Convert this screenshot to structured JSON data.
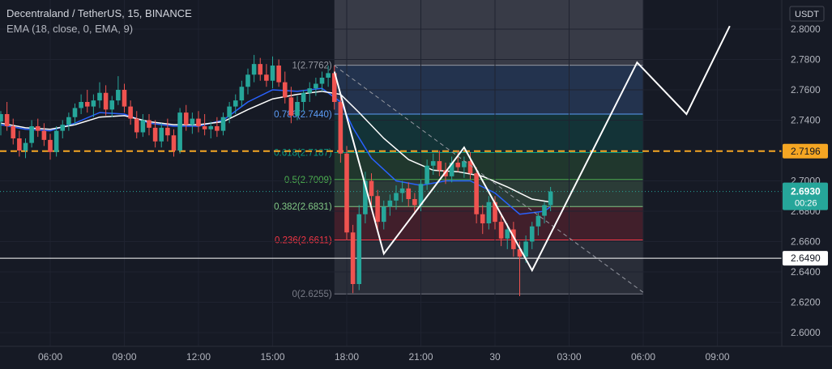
{
  "header": {
    "title": "Decentraland / TetherUS, 15, BINANCE",
    "indicator": "EMA (18, close, 0, EMA, 9)"
  },
  "colors": {
    "background": "#161a25",
    "up": "#26a69a",
    "down": "#ef5350",
    "ema": "#2962ff",
    "price_line": "#f5a623",
    "current_price": "#26a69a"
  },
  "chart_data": {
    "type": "candlestick",
    "currency_label": "USDT",
    "y_ticks": [
      "2.8000",
      "2.7800",
      "2.7600",
      "2.7400",
      "2.7200",
      "2.7000",
      "2.6800",
      "2.6600",
      "2.6400",
      "2.6200",
      "2.6000"
    ],
    "x_ticks": [
      "06:00",
      "09:00",
      "12:00",
      "15:00",
      "18:00",
      "21:00",
      "30",
      "03:00",
      "06:00",
      "09:00"
    ],
    "ylim": [
      2.595,
      2.8
    ],
    "price_tags": [
      {
        "label": "2.7196",
        "value": 2.7196,
        "kind": "orange"
      },
      {
        "label": "2.6930",
        "sub": "00:26",
        "value": 2.693,
        "kind": "current"
      },
      {
        "label": "2.6490",
        "value": 2.649,
        "kind": "white"
      }
    ],
    "fib_levels": [
      {
        "ratio": "1",
        "label": "(2.7762)",
        "value": 2.7762,
        "color": "#9598a1"
      },
      {
        "ratio": "0.786",
        "label": "(2.7440)",
        "value": 2.744,
        "color": "#5b9cf6"
      },
      {
        "ratio": "0.618",
        "label": "(2.7187)",
        "value": 2.7187,
        "color": "#089981"
      },
      {
        "ratio": "0.5",
        "label": "(2.7009)",
        "value": 2.7009,
        "color": "#4caf50"
      },
      {
        "ratio": "0.382",
        "label": "(2.6831)",
        "value": 2.6831,
        "color": "#81c784"
      },
      {
        "ratio": "0.236",
        "label": "(2.6611)",
        "value": 2.6611,
        "color": "#f23645"
      },
      {
        "ratio": "0",
        "label": "(2.6255)",
        "value": 2.6255,
        "color": "#787b86"
      }
    ],
    "fib_start_hours": 17.5,
    "fib_end_hours": 30,
    "candles": [
      {
        "t": 4.0,
        "o": 2.739,
        "h": 2.746,
        "l": 2.73,
        "c": 2.744
      },
      {
        "t": 4.25,
        "o": 2.744,
        "h": 2.752,
        "l": 2.733,
        "c": 2.736
      },
      {
        "t": 4.5,
        "o": 2.736,
        "h": 2.741,
        "l": 2.724,
        "c": 2.728
      },
      {
        "t": 4.75,
        "o": 2.728,
        "h": 2.733,
        "l": 2.716,
        "c": 2.72
      },
      {
        "t": 5.0,
        "o": 2.72,
        "h": 2.728,
        "l": 2.715,
        "c": 2.725
      },
      {
        "t": 5.25,
        "o": 2.725,
        "h": 2.74,
        "l": 2.722,
        "c": 2.736
      },
      {
        "t": 5.5,
        "o": 2.736,
        "h": 2.741,
        "l": 2.729,
        "c": 2.733
      },
      {
        "t": 5.75,
        "o": 2.733,
        "h": 2.738,
        "l": 2.723,
        "c": 2.727
      },
      {
        "t": 6.0,
        "o": 2.727,
        "h": 2.731,
        "l": 2.714,
        "c": 2.719
      },
      {
        "t": 6.25,
        "o": 2.719,
        "h": 2.736,
        "l": 2.716,
        "c": 2.733
      },
      {
        "t": 6.5,
        "o": 2.733,
        "h": 2.74,
        "l": 2.728,
        "c": 2.737
      },
      {
        "t": 6.75,
        "o": 2.737,
        "h": 2.745,
        "l": 2.733,
        "c": 2.742
      },
      {
        "t": 7.0,
        "o": 2.742,
        "h": 2.751,
        "l": 2.737,
        "c": 2.748
      },
      {
        "t": 7.25,
        "o": 2.748,
        "h": 2.757,
        "l": 2.744,
        "c": 2.752
      },
      {
        "t": 7.5,
        "o": 2.752,
        "h": 2.76,
        "l": 2.745,
        "c": 2.749
      },
      {
        "t": 7.75,
        "o": 2.749,
        "h": 2.757,
        "l": 2.742,
        "c": 2.753
      },
      {
        "t": 8.0,
        "o": 2.753,
        "h": 2.765,
        "l": 2.748,
        "c": 2.758
      },
      {
        "t": 8.25,
        "o": 2.758,
        "h": 2.763,
        "l": 2.743,
        "c": 2.747
      },
      {
        "t": 8.5,
        "o": 2.747,
        "h": 2.756,
        "l": 2.742,
        "c": 2.753
      },
      {
        "t": 8.75,
        "o": 2.753,
        "h": 2.769,
        "l": 2.75,
        "c": 2.76
      },
      {
        "t": 9.0,
        "o": 2.76,
        "h": 2.764,
        "l": 2.745,
        "c": 2.749
      },
      {
        "t": 9.25,
        "o": 2.749,
        "h": 2.753,
        "l": 2.737,
        "c": 2.741
      },
      {
        "t": 9.5,
        "o": 2.741,
        "h": 2.746,
        "l": 2.728,
        "c": 2.732
      },
      {
        "t": 9.75,
        "o": 2.732,
        "h": 2.744,
        "l": 2.729,
        "c": 2.74
      },
      {
        "t": 10.0,
        "o": 2.74,
        "h": 2.744,
        "l": 2.73,
        "c": 2.735
      },
      {
        "t": 10.25,
        "o": 2.735,
        "h": 2.74,
        "l": 2.722,
        "c": 2.726
      },
      {
        "t": 10.5,
        "o": 2.726,
        "h": 2.738,
        "l": 2.722,
        "c": 2.735
      },
      {
        "t": 10.75,
        "o": 2.735,
        "h": 2.741,
        "l": 2.726,
        "c": 2.73
      },
      {
        "t": 11.0,
        "o": 2.73,
        "h": 2.734,
        "l": 2.716,
        "c": 2.72
      },
      {
        "t": 11.25,
        "o": 2.72,
        "h": 2.748,
        "l": 2.718,
        "c": 2.745
      },
      {
        "t": 11.5,
        "o": 2.745,
        "h": 2.75,
        "l": 2.733,
        "c": 2.737
      },
      {
        "t": 11.75,
        "o": 2.737,
        "h": 2.745,
        "l": 2.731,
        "c": 2.741
      },
      {
        "t": 12.0,
        "o": 2.741,
        "h": 2.746,
        "l": 2.732,
        "c": 2.736
      },
      {
        "t": 12.25,
        "o": 2.736,
        "h": 2.744,
        "l": 2.73,
        "c": 2.734
      },
      {
        "t": 12.5,
        "o": 2.734,
        "h": 2.739,
        "l": 2.728,
        "c": 2.736
      },
      {
        "t": 12.75,
        "o": 2.736,
        "h": 2.742,
        "l": 2.729,
        "c": 2.733
      },
      {
        "t": 13.0,
        "o": 2.733,
        "h": 2.745,
        "l": 2.73,
        "c": 2.742
      },
      {
        "t": 13.25,
        "o": 2.742,
        "h": 2.752,
        "l": 2.738,
        "c": 2.749
      },
      {
        "t": 13.5,
        "o": 2.749,
        "h": 2.757,
        "l": 2.744,
        "c": 2.753
      },
      {
        "t": 13.75,
        "o": 2.753,
        "h": 2.766,
        "l": 2.749,
        "c": 2.762
      },
      {
        "t": 14.0,
        "o": 2.762,
        "h": 2.774,
        "l": 2.757,
        "c": 2.77
      },
      {
        "t": 14.25,
        "o": 2.77,
        "h": 2.783,
        "l": 2.765,
        "c": 2.777
      },
      {
        "t": 14.5,
        "o": 2.777,
        "h": 2.781,
        "l": 2.766,
        "c": 2.77
      },
      {
        "t": 14.75,
        "o": 2.77,
        "h": 2.777,
        "l": 2.762,
        "c": 2.766
      },
      {
        "t": 15.0,
        "o": 2.766,
        "h": 2.782,
        "l": 2.761,
        "c": 2.776
      },
      {
        "t": 15.25,
        "o": 2.776,
        "h": 2.78,
        "l": 2.762,
        "c": 2.765
      },
      {
        "t": 15.5,
        "o": 2.765,
        "h": 2.772,
        "l": 2.751,
        "c": 2.755
      },
      {
        "t": 15.75,
        "o": 2.755,
        "h": 2.762,
        "l": 2.738,
        "c": 2.743
      },
      {
        "t": 16.0,
        "o": 2.743,
        "h": 2.756,
        "l": 2.74,
        "c": 2.752
      },
      {
        "t": 16.25,
        "o": 2.752,
        "h": 2.76,
        "l": 2.746,
        "c": 2.758
      },
      {
        "t": 16.5,
        "o": 2.758,
        "h": 2.765,
        "l": 2.752,
        "c": 2.761
      },
      {
        "t": 16.75,
        "o": 2.761,
        "h": 2.768,
        "l": 2.756,
        "c": 2.764
      },
      {
        "t": 17.0,
        "o": 2.764,
        "h": 2.772,
        "l": 2.759,
        "c": 2.768
      },
      {
        "t": 17.25,
        "o": 2.768,
        "h": 2.776,
        "l": 2.762,
        "c": 2.771
      },
      {
        "t": 17.5,
        "o": 2.771,
        "h": 2.776,
        "l": 2.747,
        "c": 2.752
      },
      {
        "t": 17.75,
        "o": 2.752,
        "h": 2.755,
        "l": 2.712,
        "c": 2.718
      },
      {
        "t": 18.0,
        "o": 2.718,
        "h": 2.723,
        "l": 2.661,
        "c": 2.666
      },
      {
        "t": 18.25,
        "o": 2.666,
        "h": 2.671,
        "l": 2.626,
        "c": 2.632
      },
      {
        "t": 18.5,
        "o": 2.632,
        "h": 2.684,
        "l": 2.628,
        "c": 2.678
      },
      {
        "t": 18.75,
        "o": 2.678,
        "h": 2.706,
        "l": 2.672,
        "c": 2.7
      },
      {
        "t": 19.0,
        "o": 2.7,
        "h": 2.705,
        "l": 2.684,
        "c": 2.69
      },
      {
        "t": 19.25,
        "o": 2.69,
        "h": 2.694,
        "l": 2.667,
        "c": 2.673
      },
      {
        "t": 19.5,
        "o": 2.673,
        "h": 2.687,
        "l": 2.668,
        "c": 2.683
      },
      {
        "t": 19.75,
        "o": 2.683,
        "h": 2.691,
        "l": 2.677,
        "c": 2.687
      },
      {
        "t": 20.0,
        "o": 2.687,
        "h": 2.697,
        "l": 2.681,
        "c": 2.692
      },
      {
        "t": 20.25,
        "o": 2.692,
        "h": 2.7,
        "l": 2.686,
        "c": 2.695
      },
      {
        "t": 20.5,
        "o": 2.695,
        "h": 2.699,
        "l": 2.683,
        "c": 2.688
      },
      {
        "t": 20.75,
        "o": 2.688,
        "h": 2.692,
        "l": 2.678,
        "c": 2.684
      },
      {
        "t": 21.0,
        "o": 2.684,
        "h": 2.701,
        "l": 2.68,
        "c": 2.698
      },
      {
        "t": 21.25,
        "o": 2.698,
        "h": 2.714,
        "l": 2.694,
        "c": 2.71
      },
      {
        "t": 21.5,
        "o": 2.71,
        "h": 2.718,
        "l": 2.704,
        "c": 2.713
      },
      {
        "t": 21.75,
        "o": 2.713,
        "h": 2.72,
        "l": 2.703,
        "c": 2.707
      },
      {
        "t": 22.0,
        "o": 2.707,
        "h": 2.712,
        "l": 2.698,
        "c": 2.703
      },
      {
        "t": 22.25,
        "o": 2.703,
        "h": 2.716,
        "l": 2.699,
        "c": 2.712
      },
      {
        "t": 22.5,
        "o": 2.712,
        "h": 2.72,
        "l": 2.706,
        "c": 2.709
      },
      {
        "t": 22.75,
        "o": 2.709,
        "h": 2.716,
        "l": 2.702,
        "c": 2.713
      },
      {
        "t": 23.0,
        "o": 2.713,
        "h": 2.719,
        "l": 2.701,
        "c": 2.705
      },
      {
        "t": 23.25,
        "o": 2.705,
        "h": 2.709,
        "l": 2.672,
        "c": 2.678
      },
      {
        "t": 23.5,
        "o": 2.678,
        "h": 2.684,
        "l": 2.665,
        "c": 2.672
      },
      {
        "t": 23.75,
        "o": 2.672,
        "h": 2.69,
        "l": 2.668,
        "c": 2.686
      },
      {
        "t": 24.0,
        "o": 2.686,
        "h": 2.69,
        "l": 2.668,
        "c": 2.673
      },
      {
        "t": 24.25,
        "o": 2.673,
        "h": 2.677,
        "l": 2.657,
        "c": 2.662
      },
      {
        "t": 24.5,
        "o": 2.662,
        "h": 2.672,
        "l": 2.655,
        "c": 2.668
      },
      {
        "t": 24.75,
        "o": 2.668,
        "h": 2.673,
        "l": 2.65,
        "c": 2.655
      },
      {
        "t": 25.0,
        "o": 2.655,
        "h": 2.66,
        "l": 2.624,
        "c": 2.65
      },
      {
        "t": 25.25,
        "o": 2.65,
        "h": 2.664,
        "l": 2.646,
        "c": 2.66
      },
      {
        "t": 25.5,
        "o": 2.66,
        "h": 2.673,
        "l": 2.655,
        "c": 2.67
      },
      {
        "t": 25.75,
        "o": 2.67,
        "h": 2.679,
        "l": 2.664,
        "c": 2.677
      },
      {
        "t": 26.0,
        "o": 2.677,
        "h": 2.686,
        "l": 2.672,
        "c": 2.684
      },
      {
        "t": 26.25,
        "o": 2.684,
        "h": 2.696,
        "l": 2.68,
        "c": 2.693
      }
    ],
    "ema_fast": [
      [
        4,
        2.737
      ],
      [
        5,
        2.734
      ],
      [
        6,
        2.733
      ],
      [
        7,
        2.738
      ],
      [
        8,
        2.745
      ],
      [
        9,
        2.744
      ],
      [
        10,
        2.738
      ],
      [
        11,
        2.736
      ],
      [
        12,
        2.736
      ],
      [
        13,
        2.74
      ],
      [
        14,
        2.752
      ],
      [
        15,
        2.76
      ],
      [
        16,
        2.759
      ],
      [
        17,
        2.761
      ],
      [
        17.75,
        2.752
      ],
      [
        18.25,
        2.735
      ],
      [
        19,
        2.715
      ],
      [
        20,
        2.7
      ],
      [
        21,
        2.697
      ],
      [
        22,
        2.7
      ],
      [
        23,
        2.7
      ],
      [
        24,
        2.692
      ],
      [
        25,
        2.678
      ],
      [
        26,
        2.68
      ],
      [
        26.25,
        2.683
      ]
    ],
    "ema_slow": [
      [
        4,
        2.738
      ],
      [
        5,
        2.735
      ],
      [
        6,
        2.734
      ],
      [
        7,
        2.737
      ],
      [
        8,
        2.742
      ],
      [
        9,
        2.743
      ],
      [
        10,
        2.739
      ],
      [
        11,
        2.737
      ],
      [
        12,
        2.737
      ],
      [
        13,
        2.739
      ],
      [
        14,
        2.747
      ],
      [
        15,
        2.754
      ],
      [
        16,
        2.757
      ],
      [
        17,
        2.759
      ],
      [
        17.75,
        2.757
      ],
      [
        18.5,
        2.745
      ],
      [
        19.5,
        2.728
      ],
      [
        20.5,
        2.714
      ],
      [
        21.5,
        2.707
      ],
      [
        22.5,
        2.706
      ],
      [
        23.5,
        2.703
      ],
      [
        24.5,
        2.696
      ],
      [
        25.5,
        2.688
      ],
      [
        26.25,
        2.686
      ]
    ],
    "zigzag": [
      [
        17.5,
        2.772
      ],
      [
        19.5,
        2.652
      ],
      [
        22.75,
        2.722
      ],
      [
        25.5,
        2.641
      ],
      [
        29.75,
        2.778
      ],
      [
        31.75,
        2.744
      ],
      [
        33.5,
        2.802
      ]
    ],
    "trendline": [
      [
        17.5,
        2.776
      ],
      [
        30,
        2.6265
      ]
    ]
  }
}
